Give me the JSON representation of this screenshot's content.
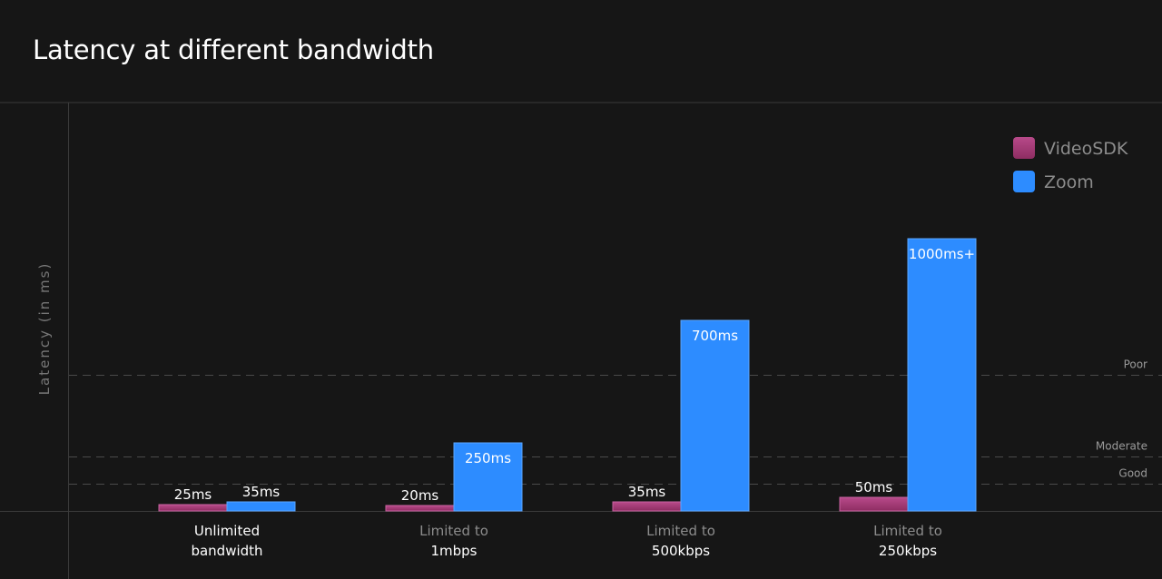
{
  "title": "Latency at different bandwidth",
  "chart_data": {
    "type": "bar",
    "title": "Latency at different bandwidth",
    "ylabel": "Latency (in ms)",
    "xlabel": "",
    "categories": [
      [
        "Unlimited",
        "bandwidth"
      ],
      [
        "Limited to",
        "1mbps"
      ],
      [
        "Limited to",
        "500kbps"
      ],
      [
        "Limited to",
        "250kbps"
      ]
    ],
    "series": [
      {
        "name": "VideoSDK",
        "color": "#b3407f",
        "values": [
          25,
          20,
          35,
          50
        ],
        "labels": [
          "25ms",
          "20ms",
          "35ms",
          "50ms"
        ]
      },
      {
        "name": "Zoom",
        "color": "#2d8cff",
        "values": [
          35,
          250,
          700,
          1000
        ],
        "labels": [
          "35ms",
          "250ms",
          "700ms",
          "1000ms+"
        ]
      }
    ],
    "thresholds": [
      {
        "label": "Poor",
        "value": 500
      },
      {
        "label": "Moderate",
        "value": 200
      },
      {
        "label": "Good",
        "value": 100
      }
    ],
    "ylim": [
      0,
      1000
    ],
    "grid": false,
    "legend_position": "top-right"
  }
}
